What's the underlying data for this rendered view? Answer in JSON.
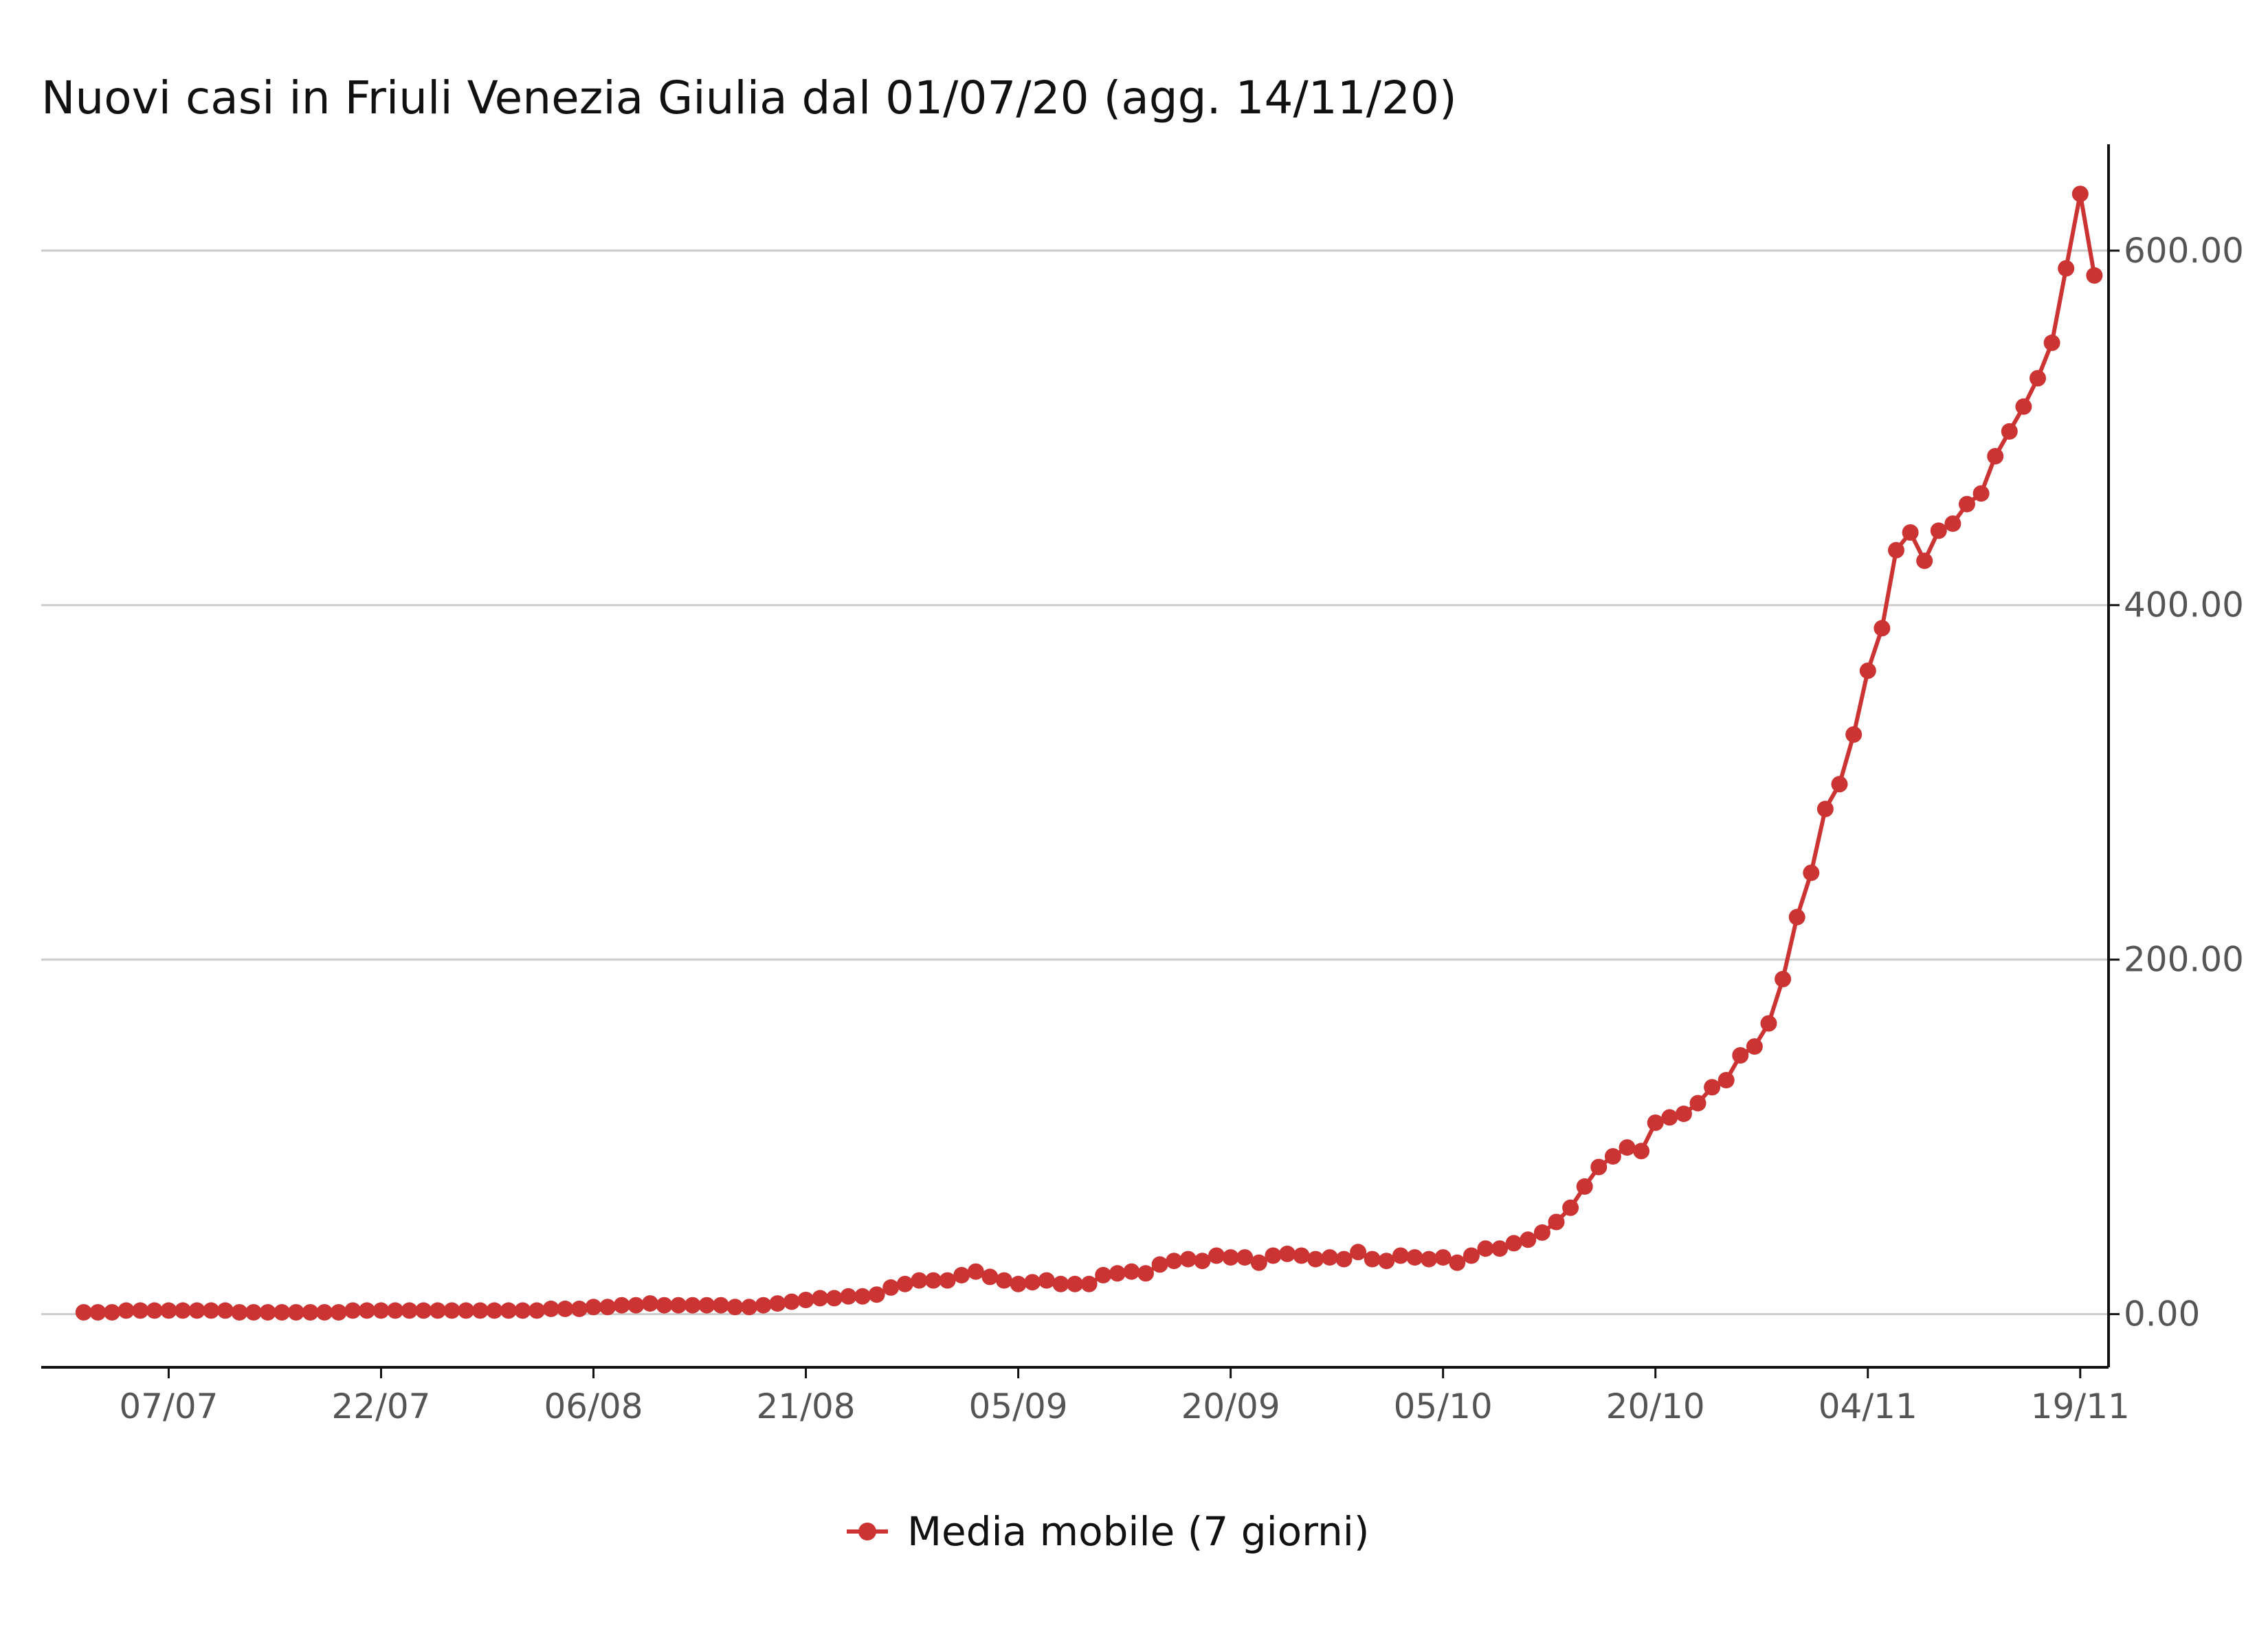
{
  "colors": {
    "series": "#cc3333",
    "grid": "#cccccc",
    "axis": "#111111",
    "tick_text": "#555555"
  },
  "chart_data": {
    "type": "line",
    "title": "Nuovi casi in Friuli Venezia Giulia dal 01/07/20 (agg. 14/11/20)",
    "xlabel": "",
    "ylabel": "",
    "x_start_date": "2020-07-01",
    "xlim": [
      "2020-06-28",
      "2020-11-21"
    ],
    "x_ticks": [
      "07/07",
      "22/07",
      "06/08",
      "21/08",
      "05/09",
      "20/09",
      "05/10",
      "20/10",
      "04/11",
      "19/11"
    ],
    "ylim": [
      -30,
      660
    ],
    "y_ticks": [
      0,
      200,
      400,
      600
    ],
    "y_tick_labels": [
      "0.00",
      "200.00",
      "400.00",
      "600.00"
    ],
    "y_axis_position": "right",
    "grid": "horizontal",
    "legend_position": "bottom",
    "series": [
      {
        "name": "Media mobile (7 giorni)",
        "color": "#cc3333",
        "markers": true,
        "values": [
          1,
          1,
          1,
          2,
          2,
          2,
          2,
          2,
          2,
          2,
          2,
          1,
          1,
          1,
          1,
          1,
          1,
          1,
          1,
          2,
          2,
          2,
          2,
          2,
          2,
          2,
          2,
          2,
          2,
          2,
          2,
          2,
          2,
          3,
          3,
          3,
          4,
          4,
          5,
          5,
          6,
          5,
          5,
          5,
          5,
          5,
          4,
          4,
          5,
          6,
          7,
          8,
          9,
          9,
          10,
          10,
          11,
          15,
          17,
          19,
          19,
          19,
          22,
          24,
          21,
          19,
          17,
          18,
          19,
          17,
          17,
          17,
          22,
          23,
          24,
          23,
          28,
          30,
          31,
          30,
          33,
          32,
          32,
          29,
          33,
          34,
          33,
          31,
          32,
          31,
          35,
          31,
          30,
          33,
          32,
          31,
          32,
          29,
          33,
          37,
          37,
          40,
          42,
          46,
          52,
          60,
          72,
          83,
          89,
          94,
          92,
          108,
          111,
          113,
          119,
          128,
          132,
          146,
          151,
          164,
          189,
          224,
          249,
          285,
          299,
          327,
          363,
          387,
          431,
          441,
          425,
          442,
          446,
          457,
          463,
          484,
          498,
          512,
          528,
          548,
          590,
          632,
          586
        ]
      }
    ]
  }
}
